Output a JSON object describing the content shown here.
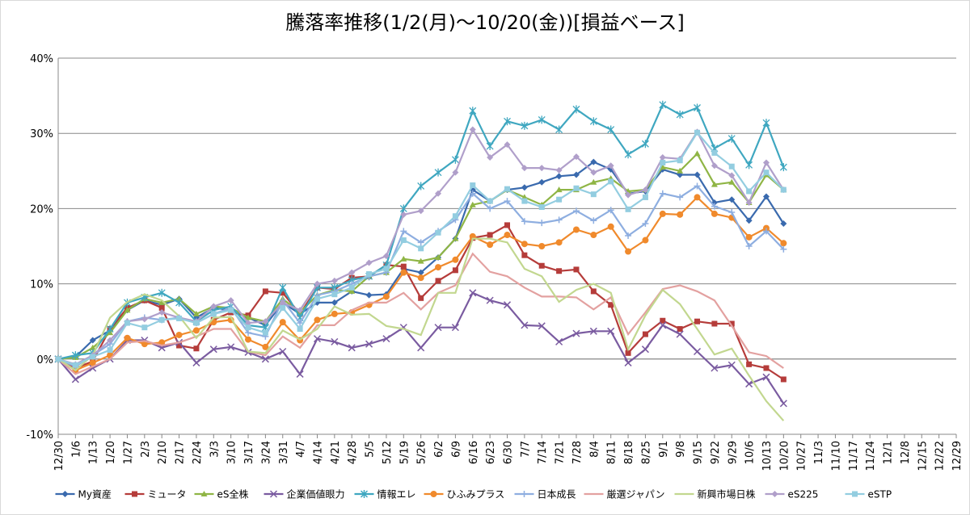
{
  "chart_data": {
    "type": "line",
    "title": "騰落率推移(1/2(月)～10/20(金))[損益ベース]",
    "categories": [
      "12/30",
      "1/6",
      "1/13",
      "1/20",
      "1/27",
      "2/3",
      "2/10",
      "2/17",
      "2/24",
      "3/3",
      "3/10",
      "3/17",
      "3/24",
      "3/31",
      "4/7",
      "4/14",
      "4/21",
      "4/28",
      "5/5",
      "5/12",
      "5/19",
      "5/26",
      "6/2",
      "6/9",
      "6/16",
      "6/23",
      "6/30",
      "7/7",
      "7/14",
      "7/21",
      "7/28",
      "8/4",
      "8/11",
      "8/18",
      "8/25",
      "9/1",
      "9/8",
      "9/15",
      "9/22",
      "9/29",
      "10/6",
      "10/13",
      "10/20",
      "10/27",
      "11/3",
      "11/10",
      "11/17",
      "11/24",
      "12/1",
      "12/8",
      "12/15",
      "12/22",
      "12/29"
    ],
    "ylim": [
      -10,
      40
    ],
    "yticks": [
      {
        "value": -10,
        "label": "-10%"
      },
      {
        "value": 0,
        "label": "0%"
      },
      {
        "value": 10,
        "label": "10%"
      },
      {
        "value": 20,
        "label": "20%"
      },
      {
        "value": 30,
        "label": "30%"
      },
      {
        "value": 40,
        "label": "40%"
      }
    ],
    "grid": true,
    "legend": "bottom",
    "series": [
      {
        "name": "My資産",
        "color": "#3a6aae",
        "marker": "diamond",
        "values": [
          0,
          0.3,
          2.5,
          3.8,
          6.5,
          7.8,
          7.2,
          8,
          5.5,
          6.8,
          6.5,
          5.5,
          4.5,
          7.5,
          6,
          7.5,
          7.5,
          9,
          8.5,
          8.6,
          12,
          11.5,
          13.5,
          16,
          22.5,
          21,
          22.5,
          22.8,
          23.5,
          24.3,
          24.5,
          26.2,
          25.2,
          22,
          22.3,
          25.2,
          24.5,
          24.5,
          20.8,
          21.2,
          18.4,
          21.6,
          18,
          null,
          null,
          null,
          null,
          null,
          null,
          null,
          null,
          null,
          null
        ]
      },
      {
        "name": "ミュータ",
        "color": "#b53c3a",
        "marker": "square",
        "values": [
          0,
          -1.2,
          -0.3,
          4,
          6.8,
          7.8,
          6.8,
          1.8,
          1.4,
          5.2,
          6.2,
          5.8,
          9,
          8.8,
          6,
          9.5,
          9.3,
          10.8,
          11,
          12.5,
          12.3,
          8.1,
          10.4,
          11.8,
          16.1,
          16.5,
          17.8,
          13.8,
          12.4,
          11.7,
          11.9,
          9,
          7.2,
          0.8,
          3.3,
          5.1,
          4,
          5,
          4.7,
          4.7,
          -0.7,
          -1.2,
          -2.7,
          null,
          null,
          null,
          null,
          null,
          null,
          null,
          null,
          null,
          null
        ]
      },
      {
        "name": "eS全株",
        "color": "#8fb545",
        "marker": "triangle",
        "values": [
          0,
          0.2,
          1.5,
          3.5,
          6.5,
          8,
          7.5,
          8,
          6,
          7,
          6.8,
          5.5,
          5,
          8,
          6.2,
          8.5,
          9.2,
          9,
          11,
          11.5,
          13.3,
          13,
          13.5,
          16,
          20.5,
          21,
          22.5,
          21.5,
          20.5,
          22.5,
          22.5,
          23.5,
          24,
          22.3,
          22.5,
          25.5,
          25,
          27.3,
          23.2,
          23.5,
          20.8,
          24.5,
          22.5,
          null,
          null,
          null,
          null,
          null,
          null,
          null,
          null,
          null,
          null
        ]
      },
      {
        "name": "企業価値眼力",
        "color": "#7a5ba0",
        "marker": "x",
        "values": [
          0,
          -2.7,
          -1.2,
          0,
          2.5,
          2.5,
          1.5,
          2.2,
          -0.5,
          1.3,
          1.6,
          0.9,
          0,
          1,
          -2,
          2.7,
          2.3,
          1.5,
          2,
          2.7,
          4.2,
          1.5,
          4.2,
          4.2,
          8.8,
          7.8,
          7.2,
          4.5,
          4.4,
          2.3,
          3.4,
          3.7,
          3.7,
          -0.5,
          1.3,
          4.5,
          3.3,
          1,
          -1.2,
          -0.8,
          -3.3,
          -2.4,
          -5.9,
          null,
          null,
          null,
          null,
          null,
          null,
          null,
          null,
          null,
          null
        ]
      },
      {
        "name": "情報エレ",
        "color": "#3fa7c0",
        "marker": "star",
        "values": [
          0,
          0.5,
          0.8,
          4,
          7.5,
          8.2,
          8.8,
          7.5,
          5,
          6.5,
          7,
          4.5,
          4.2,
          9.5,
          5.5,
          9.5,
          9.5,
          10.5,
          11,
          12.5,
          20,
          23,
          24.8,
          26.5,
          33,
          28.3,
          31.6,
          31,
          31.8,
          30.5,
          33.2,
          31.6,
          30.5,
          27.2,
          28.6,
          33.8,
          32.5,
          33.4,
          28,
          29.3,
          25.8,
          31.4,
          25.5,
          null,
          null,
          null,
          null,
          null,
          null,
          null,
          null,
          null,
          null
        ]
      },
      {
        "name": "ひふみプラス",
        "color": "#f08a2c",
        "marker": "circle",
        "values": [
          0,
          -1.5,
          -0.5,
          0.5,
          2.8,
          2,
          2.2,
          3.2,
          3.8,
          4.9,
          5.2,
          2.6,
          1.6,
          4.9,
          2.5,
          5.2,
          6,
          6.2,
          7.2,
          8.3,
          11.5,
          10.8,
          12.2,
          13.2,
          16.3,
          15.2,
          16.5,
          15.3,
          15,
          15.5,
          17.2,
          16.5,
          17.6,
          14.3,
          15.8,
          19.3,
          19.2,
          21.5,
          19.3,
          18.8,
          16.2,
          17.4,
          15.4,
          null,
          null,
          null,
          null,
          null,
          null,
          null,
          null,
          null,
          null
        ]
      },
      {
        "name": "日本成長",
        "color": "#8eaee0",
        "marker": "plus",
        "values": [
          0,
          -1,
          0.5,
          2,
          5,
          5.5,
          5.2,
          5.5,
          4.8,
          6,
          6.8,
          3.5,
          3,
          7.8,
          4.8,
          8.5,
          9,
          10,
          11,
          11.5,
          17,
          15.5,
          17,
          18.5,
          22,
          20,
          21,
          18.3,
          18.1,
          18.5,
          19.7,
          18.4,
          19.8,
          16.4,
          18,
          22,
          21.5,
          23,
          20.3,
          19.5,
          15,
          17,
          14.6,
          null,
          null,
          null,
          null,
          null,
          null,
          null,
          null,
          null,
          null
        ]
      },
      {
        "name": "厳選ジャパン",
        "color": "#e3a1a0",
        "marker": "none",
        "values": [
          0,
          -2,
          -1,
          0,
          2.2,
          2.4,
          1.8,
          2.2,
          3,
          4,
          4,
          1,
          0.5,
          3,
          1.5,
          4.5,
          4.5,
          6.5,
          7.5,
          7.5,
          8.8,
          6.6,
          8.8,
          9.8,
          14,
          11.6,
          11,
          9.5,
          8.3,
          8.3,
          8.2,
          6.6,
          8.2,
          3.3,
          6.2,
          9.3,
          9.8,
          9,
          7.8,
          4.4,
          0.9,
          0.4,
          -1.2,
          null,
          null,
          null,
          null,
          null,
          null,
          null,
          null,
          null,
          null
        ]
      },
      {
        "name": "新興市場日株",
        "color": "#c2d78f",
        "marker": "none",
        "values": [
          0,
          -1.5,
          0.5,
          5.5,
          7.6,
          8.6,
          7.8,
          5.7,
          2.8,
          5.5,
          5.6,
          1,
          0.8,
          3.8,
          2.6,
          4,
          7,
          5.9,
          6,
          4.4,
          4,
          3.2,
          8.8,
          8.8,
          16,
          16,
          15.5,
          12,
          11,
          7.6,
          9.2,
          10,
          8.8,
          1.3,
          5.8,
          9.2,
          7.3,
          4,
          0.6,
          1.4,
          -2.2,
          -5.6,
          -8.2,
          null,
          null,
          null,
          null,
          null,
          null,
          null,
          null,
          null,
          null
        ]
      },
      {
        "name": "eS225",
        "color": "#b09fca",
        "marker": "diamond",
        "values": [
          0,
          -0.7,
          0.5,
          2.5,
          5,
          5.3,
          6.2,
          5.5,
          5,
          7,
          7.8,
          4.8,
          5,
          7.5,
          6.5,
          10,
          10.4,
          11.5,
          12.8,
          13.7,
          19.2,
          19.7,
          22,
          24.8,
          30.5,
          26.8,
          28.5,
          25.4,
          25.4,
          25.1,
          26.9,
          24.8,
          25.7,
          21.8,
          22.5,
          26.8,
          26.6,
          30.2,
          25.7,
          24.4,
          20.8,
          26.1,
          22.5,
          null,
          null,
          null,
          null,
          null,
          null,
          null,
          null,
          null,
          null
        ]
      },
      {
        "name": "eSTP",
        "color": "#93cde0",
        "marker": "square",
        "values": [
          0,
          -0.8,
          0.3,
          1.2,
          4.8,
          4.2,
          5.2,
          5.4,
          4.8,
          6,
          6.5,
          4.2,
          3.5,
          6.8,
          4,
          8,
          8.6,
          9.5,
          11.3,
          12,
          15.8,
          14.7,
          16.8,
          19,
          23.1,
          21,
          22.6,
          21,
          20.2,
          21.2,
          22.7,
          21.9,
          23.6,
          19.9,
          21.5,
          26.1,
          26.4,
          30.1,
          27.4,
          25.6,
          22.3,
          24.8,
          22.5,
          null,
          null,
          null,
          null,
          null,
          null,
          null,
          null,
          null,
          null
        ]
      }
    ]
  }
}
